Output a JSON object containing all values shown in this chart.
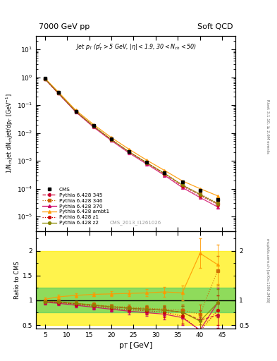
{
  "title_left": "7000 GeV pp",
  "title_right": "Soft QCD",
  "right_label_top": "Rivet 3.1.10, ≥ 2.6M events",
  "watermark_bottom": "mcplots.cern.ch [arXiv:1306.3436]",
  "cms_label": "CMS_2013_I1261026",
  "xlabel": "p$_T$ [GeV]",
  "ylabel": "1/N$_{ch}$jet dN$_{ch}$jet/dp$_T$ [GeV$^{-1}$]",
  "ylabel_ratio": "Ratio to CMS",
  "x_pts": [
    5,
    8,
    12,
    16,
    20,
    24,
    28,
    32,
    36,
    40,
    44
  ],
  "cms_y": [
    0.9,
    0.28,
    0.06,
    0.018,
    0.006,
    0.0022,
    0.0009,
    0.00038,
    0.00017,
    8.5e-05,
    4e-05
  ],
  "cms_yerr": [
    0.04,
    0.01,
    0.002,
    0.0006,
    0.0002,
    7e-05,
    3e-05,
    1.5e-05,
    8e-06,
    6e-06,
    4e-06
  ],
  "p345_y": [
    0.87,
    0.27,
    0.058,
    0.017,
    0.0057,
    0.0021,
    0.00084,
    0.00034,
    0.00013,
    6e-05,
    2.8e-05
  ],
  "p346_y": [
    0.87,
    0.275,
    0.059,
    0.0175,
    0.0058,
    0.0021,
    0.00086,
    0.00036,
    0.00014,
    6.5e-05,
    3e-05
  ],
  "p370_y": [
    0.86,
    0.265,
    0.056,
    0.016,
    0.0053,
    0.0019,
    0.00076,
    0.0003,
    0.00011,
    4.8e-05,
    2.2e-05
  ],
  "pambt_y": [
    0.92,
    0.3,
    0.065,
    0.02,
    0.0068,
    0.0026,
    0.00105,
    0.00045,
    0.00019,
    0.0001,
    5.5e-05
  ],
  "pz1_y": [
    0.87,
    0.27,
    0.058,
    0.017,
    0.0057,
    0.0021,
    0.00083,
    0.00033,
    0.00012,
    5.5e-05,
    2.6e-05
  ],
  "pz2_y": [
    0.88,
    0.275,
    0.059,
    0.0175,
    0.0058,
    0.0021,
    0.00085,
    0.00035,
    0.000135,
    6.2e-05,
    2.9e-05
  ],
  "ratio_x": [
    5,
    8,
    12,
    16,
    20,
    24,
    28,
    32,
    36,
    40,
    44
  ],
  "r345_y": [
    0.97,
    0.96,
    0.93,
    0.9,
    0.87,
    0.84,
    0.82,
    0.8,
    0.76,
    0.6,
    0.7
  ],
  "r346_y": [
    0.97,
    0.97,
    0.94,
    0.91,
    0.88,
    0.86,
    0.84,
    0.82,
    0.8,
    0.72,
    1.6
  ],
  "r370_y": [
    0.96,
    0.94,
    0.9,
    0.86,
    0.82,
    0.78,
    0.75,
    0.72,
    0.65,
    0.4,
    0.95
  ],
  "rambt_y": [
    1.02,
    1.07,
    1.1,
    1.12,
    1.13,
    1.14,
    1.15,
    1.17,
    1.15,
    1.95,
    1.72
  ],
  "rz1_y": [
    0.97,
    0.96,
    0.92,
    0.88,
    0.84,
    0.81,
    0.79,
    0.76,
    0.68,
    0.38,
    0.8
  ],
  "rz2_y": [
    0.97,
    0.97,
    0.94,
    0.9,
    0.87,
    0.84,
    0.82,
    0.8,
    0.76,
    0.58,
    0.95
  ],
  "r345_err": [
    0.04,
    0.04,
    0.04,
    0.04,
    0.04,
    0.05,
    0.06,
    0.08,
    0.12,
    0.2,
    0.25
  ],
  "r346_err": [
    0.04,
    0.04,
    0.04,
    0.04,
    0.04,
    0.05,
    0.06,
    0.08,
    0.12,
    0.2,
    0.3
  ],
  "r370_err": [
    0.04,
    0.04,
    0.04,
    0.04,
    0.05,
    0.06,
    0.07,
    0.1,
    0.15,
    0.25,
    0.3
  ],
  "rambt_err": [
    0.04,
    0.04,
    0.04,
    0.04,
    0.05,
    0.06,
    0.07,
    0.1,
    0.15,
    0.3,
    0.4
  ],
  "rz1_err": [
    0.04,
    0.04,
    0.04,
    0.05,
    0.05,
    0.06,
    0.07,
    0.1,
    0.15,
    0.25,
    0.3
  ],
  "rz2_err": [
    0.04,
    0.04,
    0.04,
    0.04,
    0.04,
    0.05,
    0.06,
    0.08,
    0.12,
    0.2,
    0.28
  ],
  "color_345": "#cc0033",
  "color_346": "#cc6600",
  "color_370": "#cc0066",
  "color_ambt": "#ff9900",
  "color_z1": "#cc0000",
  "color_z2": "#888800",
  "color_cms": "#000000",
  "band_green": "#44cc66",
  "band_yellow": "#ffee00",
  "ylim_main": [
    3e-06,
    30
  ],
  "ylim_ratio": [
    0.43,
    2.4
  ],
  "xlim": [
    3,
    48
  ]
}
